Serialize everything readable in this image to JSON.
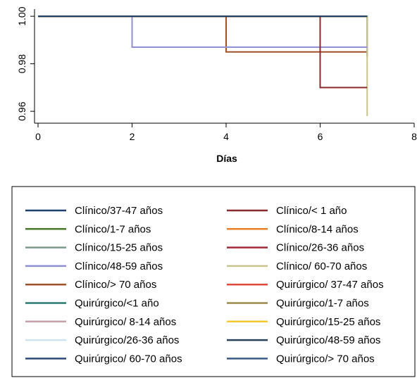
{
  "chart_data": {
    "type": "line",
    "step": true,
    "xlabel": "Días",
    "ylabel": "",
    "xlim": [
      0,
      8
    ],
    "ylim": [
      0.955,
      1.003
    ],
    "xticks": [
      0,
      2,
      4,
      6,
      8
    ],
    "yticks": [
      0.96,
      0.98,
      1.0
    ],
    "ytick_labels": [
      "0.96",
      "0.98",
      "1.00"
    ],
    "grid": false,
    "legend_position": "bottom",
    "legend_columns": 2,
    "series": [
      {
        "name": "Clínico/37-47 años",
        "color": "#1f3f6e",
        "x": [
          0,
          7
        ],
        "y": [
          1.0,
          1.0
        ]
      },
      {
        "name": "Clínico/< 1 año",
        "color": "#8b2a2a",
        "x": [
          0,
          6,
          7
        ],
        "y": [
          1.0,
          0.97,
          0.97
        ]
      },
      {
        "name": "Clínico/1-7 años",
        "color": "#4a7a2a",
        "x": [
          0,
          7
        ],
        "y": [
          1.0,
          1.0
        ]
      },
      {
        "name": "Clínico/8-14 años",
        "color": "#e8822a",
        "x": [
          0,
          7
        ],
        "y": [
          1.0,
          1.0
        ]
      },
      {
        "name": "Clínico/15-25 años",
        "color": "#7a9a8a",
        "x": [
          0,
          7
        ],
        "y": [
          1.0,
          1.0
        ]
      },
      {
        "name": "Clínico/26-36 años",
        "color": "#a3283a",
        "x": [
          0,
          7
        ],
        "y": [
          1.0,
          1.0
        ]
      },
      {
        "name": "Clínico/48-59 años",
        "color": "#8f8fd6",
        "x": [
          0,
          2,
          7
        ],
        "y": [
          1.0,
          0.987,
          0.987
        ]
      },
      {
        "name": "Clínico/ 60-70 años",
        "color": "#c8c48a",
        "x": [
          0,
          7,
          7
        ],
        "y": [
          1.0,
          1.0,
          0.958
        ]
      },
      {
        "name": "Clínico/> 70 años",
        "color": "#a0502a",
        "x": [
          0,
          4,
          7
        ],
        "y": [
          1.0,
          0.985,
          0.985
        ]
      },
      {
        "name": "Quirúrgico/ 37-47 años",
        "color": "#e04a3a",
        "x": [
          0,
          7
        ],
        "y": [
          1.0,
          1.0
        ]
      },
      {
        "name": "Quirúrgico/<1 año",
        "color": "#2a7a72",
        "x": [
          0,
          7
        ],
        "y": [
          1.0,
          1.0
        ]
      },
      {
        "name": "Quirúrgico/1-7 años",
        "color": "#9a8a4a",
        "x": [
          0,
          7
        ],
        "y": [
          1.0,
          1.0
        ]
      },
      {
        "name": "Quirúrgico/ 8-14 años",
        "color": "#c8a0a8",
        "x": [
          0,
          7
        ],
        "y": [
          1.0,
          1.0
        ]
      },
      {
        "name": "Quirúrgico/15-25 años",
        "color": "#f5c830",
        "x": [
          0,
          7
        ],
        "y": [
          1.0,
          1.0
        ]
      },
      {
        "name": "Quirúrgico/26-36 años",
        "color": "#cfe3ee",
        "x": [
          0,
          7
        ],
        "y": [
          1.0,
          1.0
        ]
      },
      {
        "name": "Quirúrgico/48-59 años",
        "color": "#2a3f5a",
        "x": [
          0,
          7
        ],
        "y": [
          1.0,
          1.0
        ]
      },
      {
        "name": "Quirúrgico/ 60-70 años",
        "color": "#2a4a7a",
        "x": [
          0,
          7
        ],
        "y": [
          1.0,
          1.0
        ]
      },
      {
        "name": "Quirúrgico/> 70 años",
        "color": "#3a5a8a",
        "x": [
          0,
          7,
          7
        ],
        "y": [
          1.0,
          1.0,
          0.983
        ]
      }
    ]
  }
}
